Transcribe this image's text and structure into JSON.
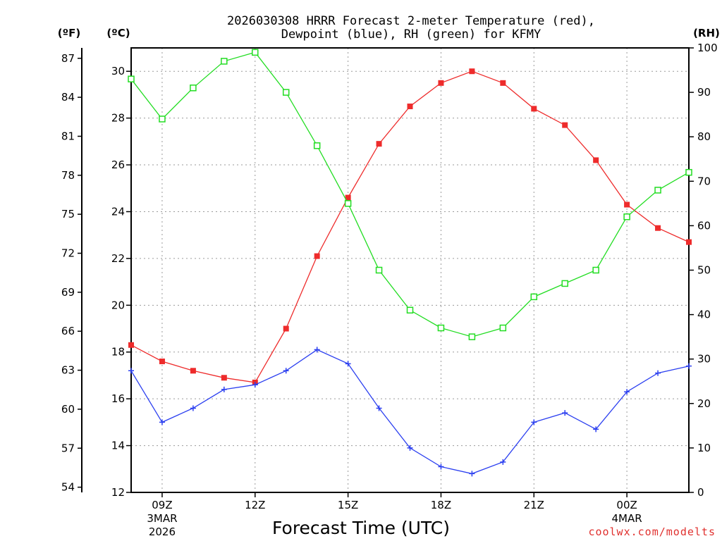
{
  "chart_data": {
    "type": "line",
    "title_line1": "2026030308 HRRR Forecast 2-meter Temperature (red),",
    "title_line2": "Dewpoint (blue), RH (green) for KFMY",
    "xlabel": "Forecast Time (UTC)",
    "credit": "coolwx.com/modelts",
    "unit_f": "(ºF)",
    "unit_c": "(ºC)",
    "unit_rh": "(RH)",
    "x_hours": [
      8,
      9,
      10,
      11,
      12,
      13,
      14,
      15,
      16,
      17,
      18,
      19,
      20,
      21,
      22,
      23,
      24,
      25,
      26
    ],
    "x_ticks": [
      {
        "hour": 9,
        "label": "09Z",
        "sub1": "3MAR",
        "sub2": "2026"
      },
      {
        "hour": 12,
        "label": "12Z",
        "sub1": "",
        "sub2": ""
      },
      {
        "hour": 15,
        "label": "15Z",
        "sub1": "",
        "sub2": ""
      },
      {
        "hour": 18,
        "label": "18Z",
        "sub1": "",
        "sub2": ""
      },
      {
        "hour": 21,
        "label": "21Z",
        "sub1": "",
        "sub2": ""
      },
      {
        "hour": 24,
        "label": "00Z",
        "sub1": "4MAR",
        "sub2": ""
      }
    ],
    "xlim": [
      8,
      26
    ],
    "ylim_c": [
      12,
      31
    ],
    "ylim_rh": [
      0,
      100
    ],
    "yticks_c": [
      "12",
      "14",
      "16",
      "18",
      "20",
      "22",
      "24",
      "26",
      "28",
      "30"
    ],
    "yticks_f": [
      "54",
      "57",
      "60",
      "63",
      "66",
      "69",
      "72",
      "75",
      "78",
      "81",
      "84",
      "87"
    ],
    "yticks_rh": [
      "0",
      "10",
      "20",
      "30",
      "40",
      "50",
      "60",
      "70",
      "80",
      "90",
      "100"
    ],
    "series": [
      {
        "name": "Temperature",
        "color": "#ee2b2b",
        "axis": "c",
        "values": [
          18.3,
          17.6,
          17.2,
          16.9,
          16.7,
          19.0,
          22.1,
          24.6,
          26.9,
          28.5,
          29.5,
          30.0,
          29.5,
          28.4,
          27.7,
          26.2,
          24.3,
          23.3,
          22.7
        ]
      },
      {
        "name": "Dewpoint",
        "color": "#2b3ff0",
        "axis": "c",
        "values": [
          17.2,
          15.0,
          15.6,
          16.4,
          16.6,
          17.2,
          18.1,
          17.5,
          15.6,
          13.9,
          13.1,
          12.8,
          13.3,
          15.0,
          15.4,
          14.7,
          16.3,
          17.1,
          17.4
        ]
      },
      {
        "name": "RH",
        "color": "#22dd22",
        "axis": "rh",
        "values": [
          93,
          84,
          91,
          97,
          99,
          90,
          78,
          65,
          50,
          41,
          37,
          35,
          37,
          44,
          47,
          50,
          62,
          68,
          72
        ]
      }
    ]
  }
}
